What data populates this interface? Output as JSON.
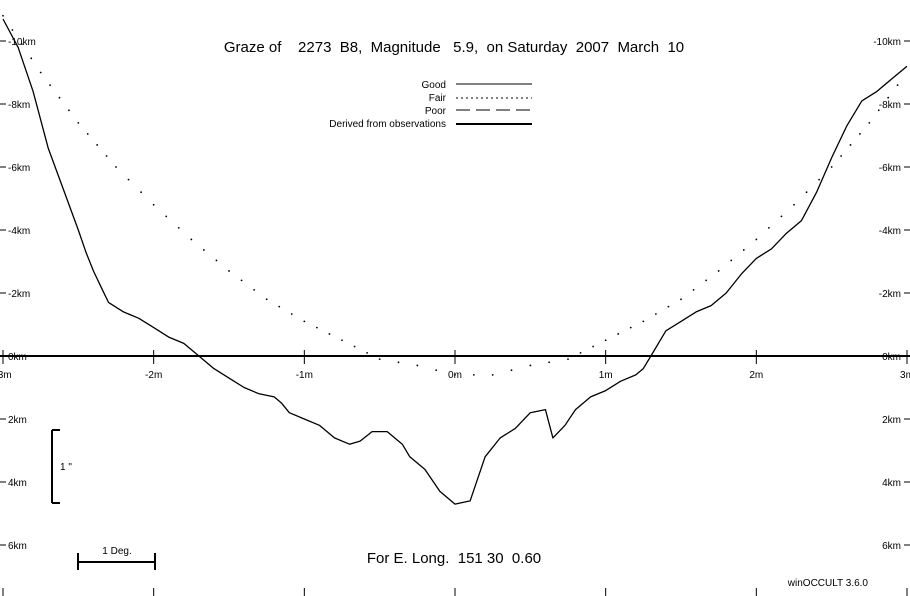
{
  "chart_data": {
    "type": "line",
    "title": "Graze of    2273  B8,  Magnitude   5.9,  on Saturday  2007  March  10",
    "footer": "For E. Long.  151 30  0.60",
    "credit": "winOCCULT 3.6.0",
    "scale_bar_label": "1 Deg.",
    "vertical_scale_label": "1 \"",
    "x_tick_labels": [
      "-3m",
      "-2m",
      "-1m",
      "0m",
      "1m",
      "2m",
      "3m"
    ],
    "x_ticks": [
      -3,
      -2,
      -1,
      0,
      1,
      2,
      3
    ],
    "y_tick_labels_left": [
      "-10km",
      "-8km",
      "-6km",
      "-4km",
      "-2km",
      "0km",
      "2km",
      "4km",
      "6km"
    ],
    "y_tick_labels_right": [
      "-10km",
      "-8km",
      "-6km",
      "-4km",
      "-2km",
      "0km",
      "2km",
      "4km",
      "6km"
    ],
    "y_ticks": [
      -10,
      -8,
      -6,
      -4,
      -2,
      0,
      2,
      4,
      6
    ],
    "xlim": [
      -3,
      3
    ],
    "ylim": [
      -10.5,
      7.5
    ],
    "legend": [
      {
        "label": "Good",
        "style": "solid"
      },
      {
        "label": "Fair",
        "style": "dotted"
      },
      {
        "label": "Poor",
        "style": "dashed"
      },
      {
        "label": "Derived from observations",
        "style": "thick"
      }
    ],
    "series": [
      {
        "style": "thick",
        "x": [
          -3.0,
          -2.9,
          -2.8,
          -2.7,
          -2.6,
          -2.5,
          -2.45,
          -2.4,
          -2.35,
          -2.3,
          -2.2,
          -2.1,
          -2.0,
          -1.9,
          -1.8,
          -1.7,
          -1.6,
          -1.5,
          -1.4,
          -1.3,
          -1.2,
          -1.15,
          -1.1,
          -1.0,
          -0.9,
          -0.8,
          -0.7,
          -0.63,
          -0.55,
          -0.45,
          -0.35,
          -0.3,
          -0.2,
          -0.1,
          0.0,
          0.1,
          0.2,
          0.3,
          0.4,
          0.5,
          0.6,
          0.65,
          0.73,
          0.8,
          0.9,
          1.0,
          1.1,
          1.2,
          1.25,
          1.3,
          1.4,
          1.5,
          1.6,
          1.7,
          1.8,
          1.9,
          2.0,
          2.1,
          2.2,
          2.3,
          2.4,
          2.5,
          2.6,
          2.7,
          2.8,
          2.9,
          3.0
        ],
        "y": [
          -10.7,
          -9.8,
          -8.4,
          -6.6,
          -5.3,
          -4.0,
          -3.3,
          -2.7,
          -2.2,
          -1.7,
          -1.4,
          -1.2,
          -0.9,
          -0.6,
          -0.4,
          0.0,
          0.4,
          0.7,
          1.0,
          1.2,
          1.3,
          1.5,
          1.8,
          2.0,
          2.2,
          2.6,
          2.8,
          2.7,
          2.4,
          2.4,
          2.8,
          3.2,
          3.6,
          4.3,
          4.7,
          4.6,
          3.2,
          2.6,
          2.3,
          1.8,
          1.7,
          2.6,
          2.2,
          1.7,
          1.3,
          1.1,
          0.8,
          0.6,
          0.4,
          0.0,
          -0.8,
          -1.1,
          -1.4,
          -1.6,
          -2.0,
          -2.6,
          -3.1,
          -3.4,
          -3.9,
          -4.3,
          -5.2,
          -6.3,
          -7.3,
          -8.1,
          -8.4,
          -8.8,
          -9.2
        ]
      },
      {
        "style": "dotted",
        "x": [
          -3.0,
          -2.75,
          -2.5,
          -2.25,
          -2.0,
          -1.75,
          -1.5,
          -1.25,
          -1.0,
          -0.75,
          -0.5,
          -0.25,
          0.0,
          0.25,
          0.5,
          0.75,
          1.0,
          1.25,
          1.5,
          1.75,
          2.0,
          2.25,
          2.5,
          2.75,
          3.0
        ],
        "y": [
          -10.8,
          -9.0,
          -7.4,
          -6.0,
          -4.8,
          -3.7,
          -2.7,
          -1.8,
          -1.1,
          -0.5,
          0.1,
          0.3,
          0.6,
          0.6,
          0.3,
          0.1,
          -0.5,
          -1.1,
          -1.8,
          -2.7,
          -3.7,
          -4.8,
          -6.0,
          -7.4,
          -9.0
        ]
      }
    ]
  }
}
